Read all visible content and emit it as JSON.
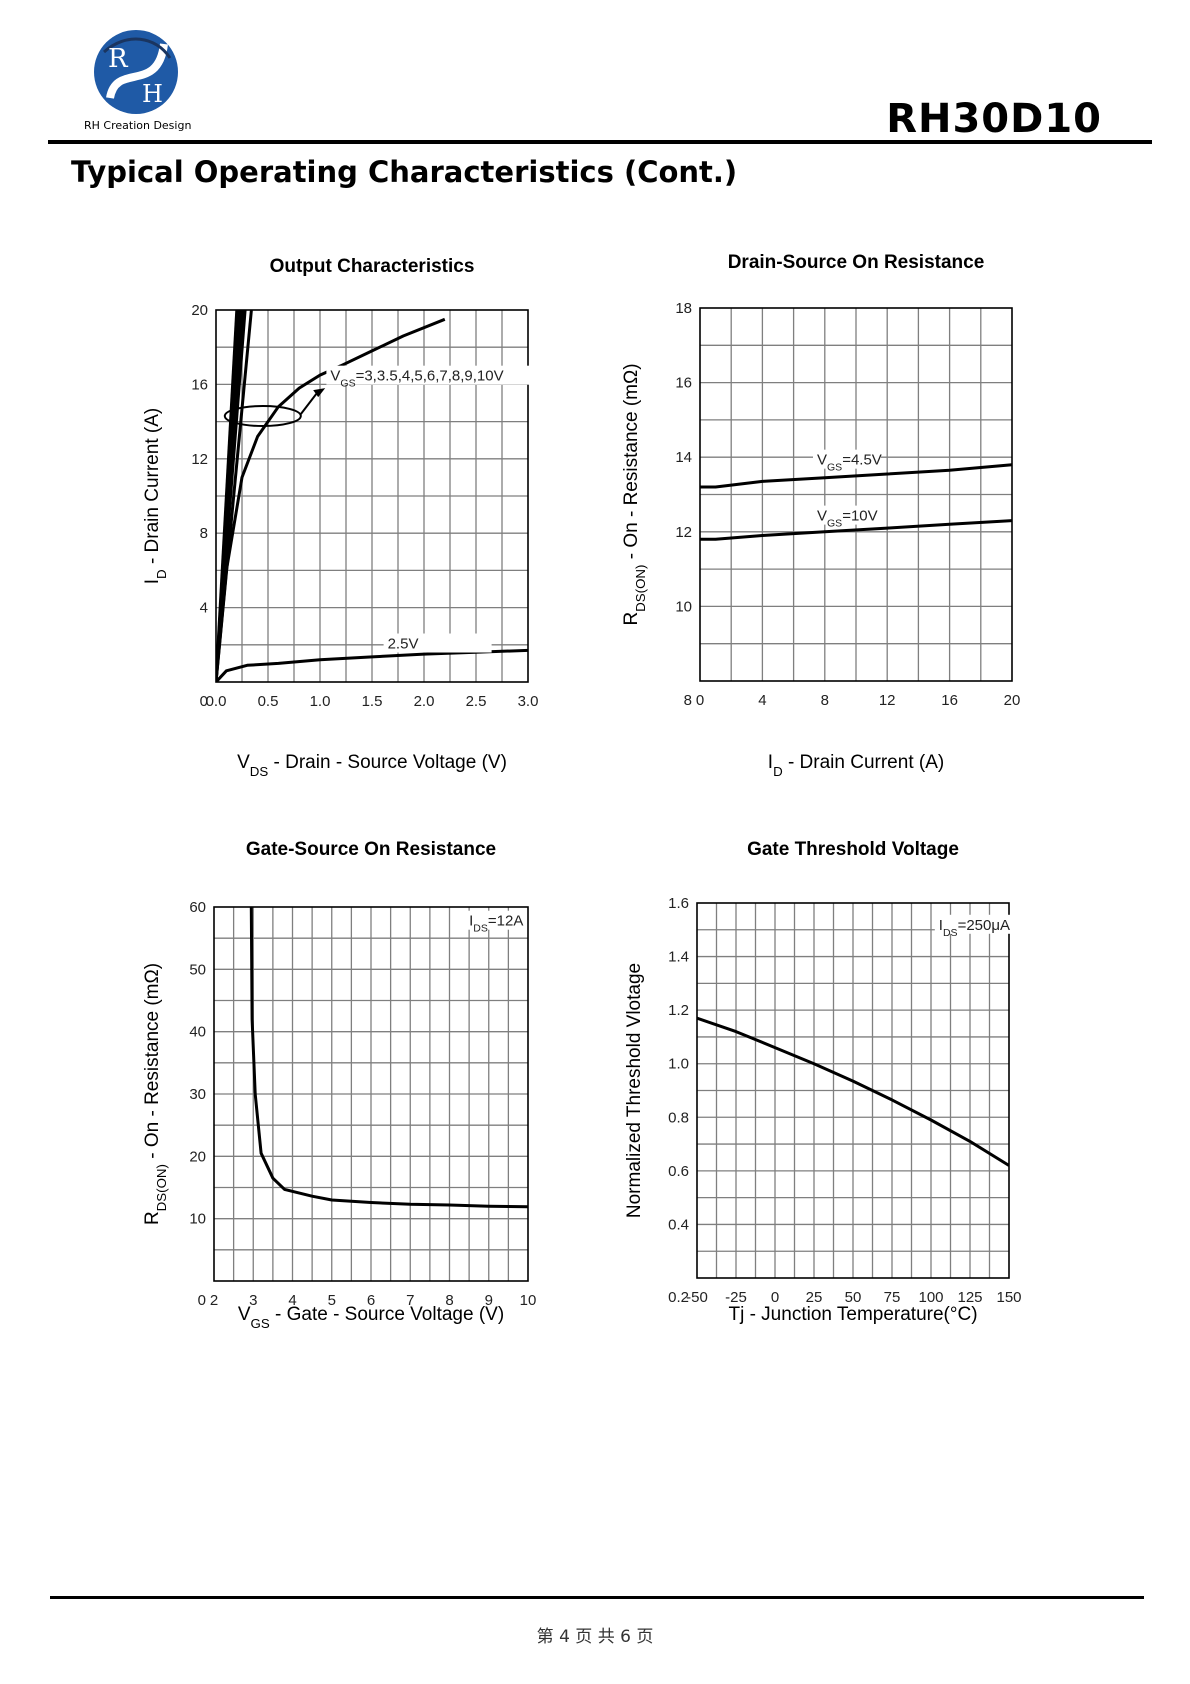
{
  "header": {
    "logo_text": "RH Creation Design",
    "logo_letters": [
      "R",
      "H"
    ],
    "part_number": "RH30D10"
  },
  "page_title": "Typical Operating Characteristics (Cont.)",
  "footer": {
    "page_text": "第 4 页 共 6 页"
  },
  "colors": {
    "grid": "#7f7f7f",
    "curve": "#000000",
    "logo_blue": "#1f5aa6",
    "logo_navy": "#1a3560"
  },
  "chart_data": [
    {
      "type": "line",
      "title": "Output Characteristics",
      "xlabel": {
        "main": "V",
        "sub": "DS",
        "rest": " - Drain - Source Voltage (V)"
      },
      "ylabel": {
        "main": "I",
        "sub": "D",
        "rest": " - Drain Current (A)"
      },
      "xlim": [
        0,
        3.0
      ],
      "ylim": [
        0,
        20
      ],
      "xticks": [
        "0.0",
        "0.5",
        "1.0",
        "1.5",
        "2.0",
        "2.5",
        "3.0"
      ],
      "yticks": [
        "0",
        "4",
        "8",
        "12",
        "16",
        "20"
      ],
      "grid": true,
      "series": [
        {
          "values": [
            [
              0,
              0
            ],
            [
              0.2,
              20
            ]
          ]
        },
        {
          "values": [
            [
              0,
              0
            ],
            [
              0.22,
              20
            ]
          ]
        },
        {
          "values": [
            [
              0,
              0
            ],
            [
              0.24,
              20
            ]
          ]
        },
        {
          "values": [
            [
              0,
              0
            ],
            [
              0.26,
              20
            ]
          ]
        },
        {
          "values": [
            [
              0,
              0
            ],
            [
              0.28,
              20
            ]
          ]
        },
        {
          "values": [
            [
              0,
              0
            ],
            [
              0.34,
              20
            ]
          ]
        },
        {
          "values": [
            [
              0,
              0
            ],
            [
              0.1,
              6
            ],
            [
              0.25,
              11
            ],
            [
              0.4,
              13.2
            ],
            [
              0.6,
              14.8
            ],
            [
              0.8,
              15.8
            ],
            [
              1.0,
              16.5
            ],
            [
              1.2,
              17.0
            ],
            [
              1.5,
              17.8
            ],
            [
              1.8,
              18.6
            ],
            [
              2.2,
              19.5
            ]
          ]
        },
        {
          "values": [
            [
              0,
              0
            ],
            [
              0.1,
              0.6
            ],
            [
              0.3,
              0.9
            ],
            [
              0.6,
              1.0
            ],
            [
              1.0,
              1.2
            ],
            [
              1.5,
              1.35
            ],
            [
              2.0,
              1.5
            ],
            [
              2.5,
              1.6
            ],
            [
              3.0,
              1.7
            ]
          ]
        }
      ],
      "annotations": [
        {
          "text": "V",
          "sub": "GS",
          "rest": "=3,3.5,4,5,6,7,8,9,10V"
        },
        {
          "text": "2.5V"
        }
      ]
    },
    {
      "type": "line",
      "title": "Drain-Source On Resistance",
      "xlabel": {
        "main": "I",
        "sub": "D",
        "rest": " - Drain Current (A)"
      },
      "ylabel": {
        "main": "R",
        "sub": "DS(ON)",
        "rest": " - On - Resistance (mΩ)"
      },
      "xlim": [
        0,
        20
      ],
      "ylim": [
        8,
        18
      ],
      "xticks": [
        "0",
        "4",
        "8",
        "12",
        "16",
        "20"
      ],
      "yticks": [
        "8",
        "10",
        "12",
        "14",
        "16",
        "18"
      ],
      "grid": true,
      "series": [
        {
          "name": "V_GS=4.5V",
          "values": [
            [
              0,
              13.2
            ],
            [
              1,
              13.2
            ],
            [
              4,
              13.35
            ],
            [
              8,
              13.45
            ],
            [
              12,
              13.55
            ],
            [
              16,
              13.65
            ],
            [
              20,
              13.8
            ]
          ]
        },
        {
          "name": "V_GS=10V",
          "values": [
            [
              0,
              11.8
            ],
            [
              1,
              11.8
            ],
            [
              4,
              11.9
            ],
            [
              8,
              12.0
            ],
            [
              12,
              12.1
            ],
            [
              16,
              12.2
            ],
            [
              20,
              12.3
            ]
          ]
        }
      ],
      "annotations": [
        {
          "text": "V",
          "sub": "GS",
          "rest": "=4.5V"
        },
        {
          "text": "V",
          "sub": "GS",
          "rest": "=10V"
        }
      ]
    },
    {
      "type": "line",
      "title": "Gate-Source On Resistance",
      "xlabel": {
        "main": "V",
        "sub": "GS",
        "rest": " - Gate - Source Voltage (V)"
      },
      "ylabel": {
        "main": "R",
        "sub": "DS(ON)",
        "rest": " - On - Resistance (mΩ)"
      },
      "xlim": [
        2,
        10
      ],
      "ylim": [
        0,
        60
      ],
      "xticks": [
        "2",
        "3",
        "4",
        "5",
        "6",
        "7",
        "8",
        "9",
        "10"
      ],
      "yticks": [
        "0",
        "10",
        "20",
        "30",
        "40",
        "50",
        "60"
      ],
      "grid": true,
      "series": [
        {
          "values": [
            [
              2.95,
              60
            ],
            [
              2.97,
              42
            ],
            [
              3.05,
              30
            ],
            [
              3.2,
              20.5
            ],
            [
              3.5,
              16.5
            ],
            [
              3.8,
              14.7
            ],
            [
              4.5,
              13.6
            ],
            [
              5,
              13.0
            ],
            [
              6,
              12.6
            ],
            [
              7,
              12.3
            ],
            [
              8,
              12.2
            ],
            [
              9,
              12.0
            ],
            [
              10,
              11.9
            ]
          ]
        }
      ],
      "annotations": [
        {
          "text": "I",
          "sub": "DS",
          "rest": "=12A"
        }
      ]
    },
    {
      "type": "line",
      "title": "Gate Threshold Voltage",
      "xlabel": {
        "main": "Tj - Junction Temperature(°C)",
        "sub": "",
        "rest": ""
      },
      "ylabel": {
        "main": "Normalized Threshold Vlotage",
        "sub": "",
        "rest": ""
      },
      "xlim": [
        -50,
        150
      ],
      "ylim": [
        0.2,
        1.6
      ],
      "xticks": [
        "-50",
        "-25",
        "0",
        "25",
        "50",
        "75",
        "100",
        "125",
        "150"
      ],
      "yticks": [
        "0.2",
        "0.4",
        "0.6",
        "0.8",
        "1.0",
        "1.2",
        "1.4",
        "1.6"
      ],
      "grid": true,
      "series": [
        {
          "values": [
            [
              -50,
              1.17
            ],
            [
              -25,
              1.12
            ],
            [
              0,
              1.06
            ],
            [
              25,
              1.0
            ],
            [
              50,
              0.935
            ],
            [
              75,
              0.865
            ],
            [
              100,
              0.79
            ],
            [
              125,
              0.71
            ],
            [
              150,
              0.62
            ]
          ]
        }
      ],
      "annotations": [
        {
          "text": "I",
          "sub": "DS",
          "rest": "=250μA"
        }
      ]
    }
  ]
}
